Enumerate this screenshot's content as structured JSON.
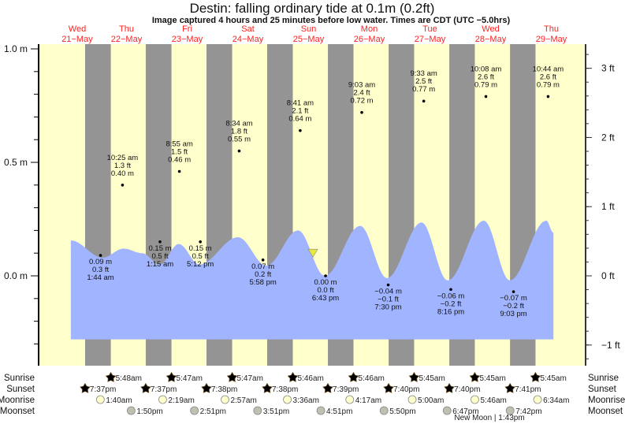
{
  "chart_data": {
    "type": "area",
    "title": "Destin: falling  ordinary tide at 0.1m (0.2ft)",
    "subtitle": "Image captured 4 hours and 25 minutes before low water. Times are CDT (UTC −5.0hrs)",
    "days": [
      {
        "dow": "Wed",
        "date": "21−May",
        "day": "21-May"
      },
      {
        "dow": "Thu",
        "date": "22−May",
        "day": "22-May"
      },
      {
        "dow": "Fri",
        "date": "23−May",
        "day": "23-May"
      },
      {
        "dow": "Sat",
        "date": "24−May",
        "day": "24-May"
      },
      {
        "dow": "Sun",
        "date": "25−May",
        "day": "25-May"
      },
      {
        "dow": "Mon",
        "date": "26−May",
        "day": "26-May"
      },
      {
        "dow": "Tue",
        "date": "27−May",
        "day": "27-May"
      },
      {
        "dow": "Wed",
        "date": "28−May",
        "day": "28-May"
      },
      {
        "dow": "Thu",
        "date": "29−May",
        "day": "29-May"
      }
    ],
    "y_left": {
      "unit": "m",
      "ylim": [
        -0.39,
        1.01
      ],
      "ticks": [
        {
          "v": 1.0,
          "label": "1.0 m"
        },
        {
          "v": 0.5,
          "label": "0.5 m"
        },
        {
          "v": 0.0,
          "label": "0.0 m"
        }
      ]
    },
    "y_right": {
      "unit": "ft",
      "ticks": [
        {
          "v": 3,
          "label": "3 ft"
        },
        {
          "v": 2,
          "label": "2 ft"
        },
        {
          "v": 1,
          "label": "1 ft"
        },
        {
          "v": 0,
          "label": "0 ft"
        },
        {
          "v": -1,
          "label": "−1 ft"
        }
      ]
    },
    "tide_curve_m": [
      [
        "21-May 14:00",
        0.156
      ],
      [
        "22-May 02:30",
        0.08
      ],
      [
        "22-May 10:55",
        0.12
      ],
      [
        "22-May 18:05",
        0.1
      ],
      [
        "23-May 01:10",
        0.05
      ],
      [
        "23-May 08:40",
        0.14
      ],
      [
        "23-May 16:50",
        0.05
      ],
      [
        "24-May 08:05",
        0.17
      ],
      [
        "24-May 19:20",
        0.045
      ],
      [
        "25-May 07:50",
        0.2
      ],
      [
        "25-May 18:25",
        0.0
      ],
      [
        "26-May 08:25",
        0.22
      ],
      [
        "26-May 19:00",
        -0.01
      ],
      [
        "27-May 08:40",
        0.235
      ],
      [
        "27-May 19:00",
        -0.02
      ],
      [
        "28-May 09:20",
        0.243
      ],
      [
        "28-May 19:35",
        -0.02
      ],
      [
        "29-May 10:00",
        0.243
      ],
      [
        "29-May 12:50",
        0.19
      ]
    ],
    "curve_base_m": -0.28,
    "current": {
      "time": "25-May 13:43",
      "m": 0.1
    },
    "extremes": [
      {
        "type": "low",
        "day": "22-May",
        "time": "1:44 am",
        "ft": "0.3 ft",
        "m": "0.09 m",
        "v": 0.09
      },
      {
        "type": "high",
        "day": "22-May",
        "time": "10:25 am",
        "ft": "1.3 ft",
        "m": "0.40 m",
        "v": 0.4
      },
      {
        "type": "low",
        "day": "23-May",
        "time": "1:15 am",
        "ft": "0.5 ft",
        "m": "0.15 m",
        "v": 0.15
      },
      {
        "type": "high",
        "day": "23-May",
        "time": "8:55 am",
        "ft": "1.5 ft",
        "m": "0.46 m",
        "v": 0.46
      },
      {
        "type": "low",
        "day": "23-May",
        "time": "5:12 pm",
        "ft": "0.5 ft",
        "m": "0.15 m",
        "v": 0.15
      },
      {
        "type": "high",
        "day": "24-May",
        "time": "8:34 am",
        "ft": "1.8 ft",
        "m": "0.55 m",
        "v": 0.55
      },
      {
        "type": "low",
        "day": "24-May",
        "time": "5:58 pm",
        "ft": "0.2 ft",
        "m": "0.07 m",
        "v": 0.07
      },
      {
        "type": "high",
        "day": "25-May",
        "time": "8:41 am",
        "ft": "2.1 ft",
        "m": "0.64 m",
        "v": 0.64
      },
      {
        "type": "low",
        "day": "25-May",
        "time": "6:43 pm",
        "ft": "0.0 ft",
        "m": "0.00 m",
        "v": 0.0
      },
      {
        "type": "high",
        "day": "26-May",
        "time": "9:03 am",
        "ft": "2.4 ft",
        "m": "0.72 m",
        "v": 0.72
      },
      {
        "type": "low",
        "day": "26-May",
        "time": "7:30 pm",
        "ft": "−0.1 ft",
        "m": "−0.04 m",
        "v": -0.04
      },
      {
        "type": "high",
        "day": "27-May",
        "time": "9:33 am",
        "ft": "2.5 ft",
        "m": "0.77 m",
        "v": 0.77
      },
      {
        "type": "low",
        "day": "27-May",
        "time": "8:16 pm",
        "ft": "−0.2 ft",
        "m": "−0.06 m",
        "v": -0.06
      },
      {
        "type": "high",
        "day": "28-May",
        "time": "10:08 am",
        "ft": "2.6 ft",
        "m": "0.79 m",
        "v": 0.79
      },
      {
        "type": "low",
        "day": "28-May",
        "time": "9:03 pm",
        "ft": "−0.2 ft",
        "m": "−0.07 m",
        "v": -0.07
      },
      {
        "type": "high",
        "day": "29-May",
        "time": "10:44 am",
        "ft": "2.6 ft",
        "m": "0.79 m",
        "v": 0.79
      }
    ],
    "astro_labels": {
      "sunrise": "Sunrise",
      "sunset": "Sunset",
      "moonrise": "Moonrise",
      "moonset": "Moonset"
    },
    "sunrise": [
      {
        "day": "22-May",
        "time": "5:48am"
      },
      {
        "day": "23-May",
        "time": "5:47am"
      },
      {
        "day": "24-May",
        "time": "5:47am"
      },
      {
        "day": "25-May",
        "time": "5:46am"
      },
      {
        "day": "26-May",
        "time": "5:46am"
      },
      {
        "day": "27-May",
        "time": "5:45am"
      },
      {
        "day": "28-May",
        "time": "5:45am"
      },
      {
        "day": "29-May",
        "time": "5:45am"
      }
    ],
    "sunset": [
      {
        "day": "21-May",
        "time": "7:37pm"
      },
      {
        "day": "22-May",
        "time": "7:37pm"
      },
      {
        "day": "23-May",
        "time": "7:38pm"
      },
      {
        "day": "24-May",
        "time": "7:38pm"
      },
      {
        "day": "25-May",
        "time": "7:39pm"
      },
      {
        "day": "26-May",
        "time": "7:40pm"
      },
      {
        "day": "27-May",
        "time": "7:40pm"
      },
      {
        "day": "28-May",
        "time": "7:41pm"
      }
    ],
    "moonrise": [
      {
        "day": "22-May",
        "time": "1:40am"
      },
      {
        "day": "23-May",
        "time": "2:19am"
      },
      {
        "day": "24-May",
        "time": "2:57am"
      },
      {
        "day": "25-May",
        "time": "3:36am"
      },
      {
        "day": "26-May",
        "time": "4:17am"
      },
      {
        "day": "27-May",
        "time": "5:00am"
      },
      {
        "day": "28-May",
        "time": "5:46am"
      },
      {
        "day": "29-May",
        "time": "6:34am"
      }
    ],
    "moonset": [
      {
        "day": "22-May",
        "time": "1:50pm"
      },
      {
        "day": "23-May",
        "time": "2:51pm"
      },
      {
        "day": "24-May",
        "time": "3:51pm"
      },
      {
        "day": "25-May",
        "time": "4:51pm"
      },
      {
        "day": "26-May",
        "time": "5:50pm"
      },
      {
        "day": "27-May",
        "time": "6:47pm"
      },
      {
        "day": "28-May",
        "time": "7:42pm"
      }
    ],
    "moon_phase": "New Moon | 1:43pm",
    "colors": {
      "day": "#ffffcc",
      "night": "#949494",
      "water": "#a0b4ff",
      "date_text": "#ff2222",
      "sunrise": "#b5b030",
      "sunset": "#d06a2a",
      "moonrise": "#ffffcc",
      "moonset": "#c0c0b0",
      "current_marker": "#e8e840"
    }
  }
}
